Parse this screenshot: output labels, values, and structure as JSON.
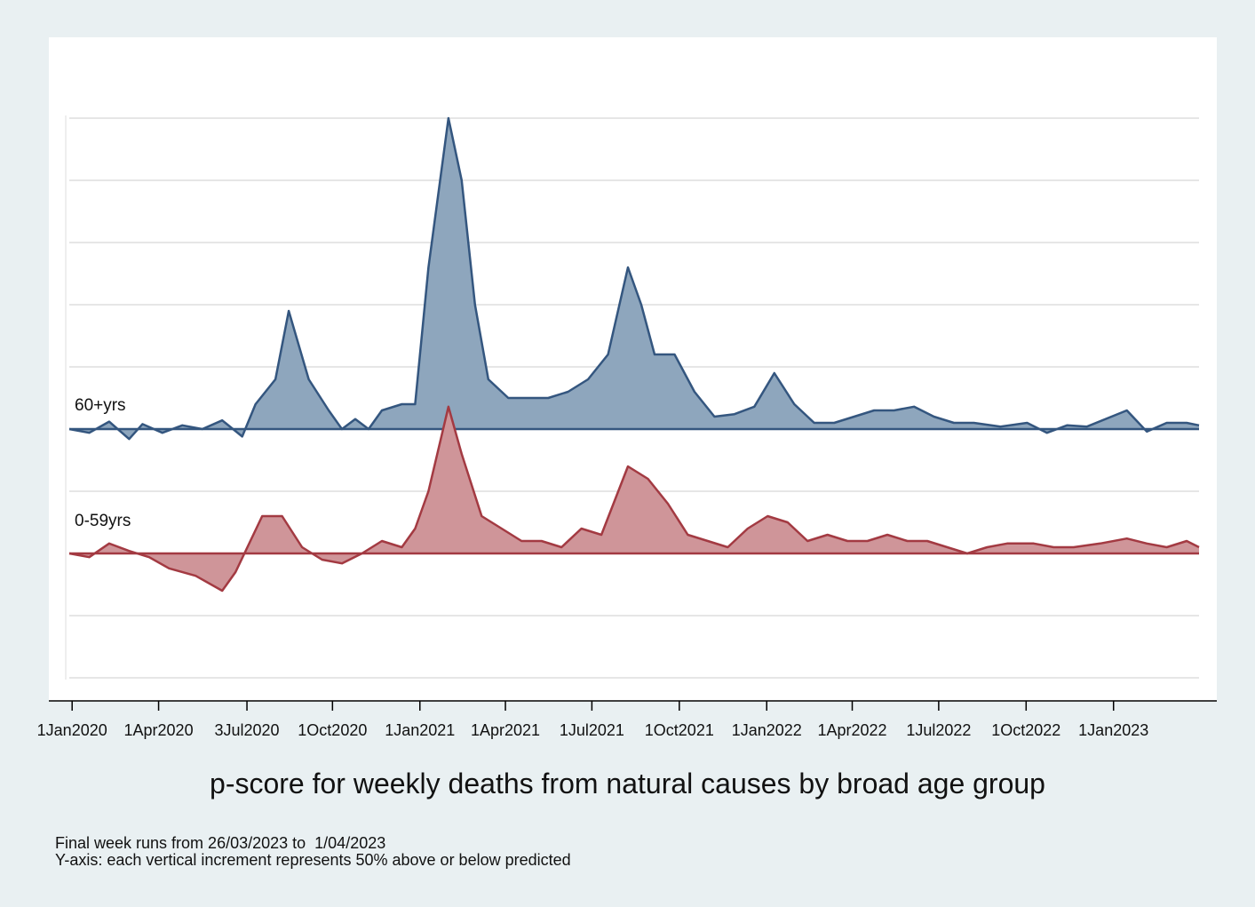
{
  "chart_data": {
    "type": "area",
    "title": "p-score for weekly deaths from natural causes by broad age group",
    "notes": [
      "Final week runs from 26/03/2023 to  1/04/2023",
      "Y-axis: each vertical increment represents 50% above or below predicted"
    ],
    "x_ticks": [
      "1Jan2020",
      "1Apr2020",
      "3Jul2020",
      "1Oct2020",
      "1Jan2021",
      "1Apr2021",
      "1Jul2021",
      "1Oct2021",
      "1Jan2022",
      "1Apr2022",
      "1Jul2022",
      "1Oct2022",
      "1Jan2023"
    ],
    "xlim": [
      "2019-12-29",
      "2023-04-01"
    ],
    "y_increment_percent": 50,
    "grid": true,
    "colors": {
      "60+yrs": "#34567f",
      "60+yrs_fill": "#8ea6bd",
      "0-59yrs": "#a33a42",
      "0-59yrs_fill": "#cf9599",
      "grid": "#dddddd"
    },
    "series": [
      {
        "name": "60+yrs",
        "unit": "p-score %",
        "points": [
          [
            "2019-12-29",
            0
          ],
          [
            "2020-01-19",
            -3
          ],
          [
            "2020-02-09",
            6
          ],
          [
            "2020-03-01",
            -8
          ],
          [
            "2020-03-15",
            4
          ],
          [
            "2020-04-05",
            -3
          ],
          [
            "2020-04-26",
            3
          ],
          [
            "2020-05-17",
            0
          ],
          [
            "2020-06-07",
            7
          ],
          [
            "2020-06-28",
            -6
          ],
          [
            "2020-07-12",
            20
          ],
          [
            "2020-08-02",
            40
          ],
          [
            "2020-08-16",
            95
          ],
          [
            "2020-09-06",
            40
          ],
          [
            "2020-09-27",
            15
          ],
          [
            "2020-10-11",
            0
          ],
          [
            "2020-10-25",
            8
          ],
          [
            "2020-11-08",
            0
          ],
          [
            "2020-11-22",
            15
          ],
          [
            "2020-12-13",
            20
          ],
          [
            "2020-12-27",
            20
          ],
          [
            "2021-01-10",
            130
          ],
          [
            "2021-01-31",
            250
          ],
          [
            "2021-02-14",
            200
          ],
          [
            "2021-02-28",
            100
          ],
          [
            "2021-03-14",
            40
          ],
          [
            "2021-04-04",
            25
          ],
          [
            "2021-04-25",
            25
          ],
          [
            "2021-05-16",
            25
          ],
          [
            "2021-06-06",
            30
          ],
          [
            "2021-06-27",
            40
          ],
          [
            "2021-07-18",
            60
          ],
          [
            "2021-08-08",
            130
          ],
          [
            "2021-08-22",
            100
          ],
          [
            "2021-09-05",
            60
          ],
          [
            "2021-09-26",
            60
          ],
          [
            "2021-10-17",
            30
          ],
          [
            "2021-11-07",
            10
          ],
          [
            "2021-11-28",
            12
          ],
          [
            "2021-12-19",
            18
          ],
          [
            "2022-01-09",
            45
          ],
          [
            "2022-01-30",
            20
          ],
          [
            "2022-02-20",
            5
          ],
          [
            "2022-03-13",
            5
          ],
          [
            "2022-04-03",
            10
          ],
          [
            "2022-04-24",
            15
          ],
          [
            "2022-05-15",
            15
          ],
          [
            "2022-06-05",
            18
          ],
          [
            "2022-06-26",
            10
          ],
          [
            "2022-07-17",
            5
          ],
          [
            "2022-08-07",
            5
          ],
          [
            "2022-09-04",
            2
          ],
          [
            "2022-10-02",
            5
          ],
          [
            "2022-10-23",
            -3
          ],
          [
            "2022-11-13",
            3
          ],
          [
            "2022-12-04",
            2
          ],
          [
            "2023-01-15",
            15
          ],
          [
            "2023-02-05",
            -2
          ],
          [
            "2023-02-26",
            5
          ],
          [
            "2023-03-19",
            5
          ],
          [
            "2023-04-01",
            3
          ]
        ]
      },
      {
        "name": "0-59yrs",
        "unit": "p-score %",
        "points": [
          [
            "2019-12-29",
            0
          ],
          [
            "2020-01-19",
            -3
          ],
          [
            "2020-02-09",
            8
          ],
          [
            "2020-03-01",
            2
          ],
          [
            "2020-03-22",
            -3
          ],
          [
            "2020-04-12",
            -12
          ],
          [
            "2020-05-10",
            -18
          ],
          [
            "2020-06-07",
            -30
          ],
          [
            "2020-06-21",
            -15
          ],
          [
            "2020-07-19",
            30
          ],
          [
            "2020-08-09",
            30
          ],
          [
            "2020-08-30",
            5
          ],
          [
            "2020-09-20",
            -5
          ],
          [
            "2020-10-11",
            -8
          ],
          [
            "2020-11-01",
            0
          ],
          [
            "2020-11-22",
            10
          ],
          [
            "2020-12-13",
            5
          ],
          [
            "2020-12-27",
            20
          ],
          [
            "2021-01-10",
            50
          ],
          [
            "2021-01-31",
            118
          ],
          [
            "2021-02-14",
            80
          ],
          [
            "2021-03-07",
            30
          ],
          [
            "2021-03-28",
            20
          ],
          [
            "2021-04-18",
            10
          ],
          [
            "2021-05-09",
            10
          ],
          [
            "2021-05-30",
            5
          ],
          [
            "2021-06-20",
            20
          ],
          [
            "2021-07-11",
            15
          ],
          [
            "2021-08-08",
            70
          ],
          [
            "2021-08-29",
            60
          ],
          [
            "2021-09-19",
            40
          ],
          [
            "2021-10-10",
            15
          ],
          [
            "2021-10-31",
            10
          ],
          [
            "2021-11-21",
            5
          ],
          [
            "2021-12-12",
            20
          ],
          [
            "2022-01-02",
            30
          ],
          [
            "2022-01-23",
            25
          ],
          [
            "2022-02-13",
            10
          ],
          [
            "2022-03-06",
            15
          ],
          [
            "2022-03-27",
            10
          ],
          [
            "2022-04-17",
            10
          ],
          [
            "2022-05-08",
            15
          ],
          [
            "2022-05-29",
            10
          ],
          [
            "2022-06-19",
            10
          ],
          [
            "2022-07-10",
            5
          ],
          [
            "2022-07-31",
            0
          ],
          [
            "2022-08-21",
            5
          ],
          [
            "2022-09-11",
            8
          ],
          [
            "2022-10-09",
            8
          ],
          [
            "2022-10-30",
            5
          ],
          [
            "2022-11-20",
            5
          ],
          [
            "2022-12-18",
            8
          ],
          [
            "2023-01-15",
            12
          ],
          [
            "2023-02-05",
            8
          ],
          [
            "2023-02-26",
            5
          ],
          [
            "2023-03-19",
            10
          ],
          [
            "2023-04-01",
            5
          ]
        ]
      }
    ]
  }
}
